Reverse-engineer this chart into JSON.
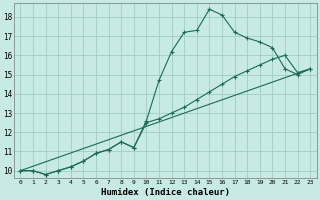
{
  "xlabel": "Humidex (Indice chaleur)",
  "bg_color": "#c8eae4",
  "grid_color": "#a0ccc4",
  "line_color": "#1a6b5a",
  "xlim_min": -0.5,
  "xlim_max": 23.5,
  "ylim_min": 9.6,
  "ylim_max": 18.7,
  "xticks": [
    0,
    1,
    2,
    3,
    4,
    5,
    6,
    7,
    8,
    9,
    10,
    11,
    12,
    13,
    14,
    15,
    16,
    17,
    18,
    19,
    20,
    21,
    22,
    23
  ],
  "yticks": [
    10,
    11,
    12,
    13,
    14,
    15,
    16,
    17,
    18
  ],
  "line1_x": [
    0,
    1,
    2,
    3,
    4,
    5,
    6,
    7,
    8,
    9,
    10,
    11,
    12,
    13,
    14,
    15,
    16,
    17,
    18,
    19,
    20,
    21,
    22,
    23
  ],
  "line1_y": [
    10.0,
    10.0,
    9.8,
    10.0,
    10.2,
    10.5,
    10.9,
    11.1,
    11.5,
    11.2,
    12.6,
    14.7,
    16.2,
    17.2,
    17.3,
    18.4,
    18.1,
    17.2,
    16.9,
    16.7,
    16.4,
    15.3,
    15.0,
    15.3
  ],
  "line2_x": [
    0,
    1,
    2,
    3,
    4,
    5,
    6,
    7,
    8,
    9,
    10,
    11,
    12,
    13,
    14,
    15,
    16,
    17,
    18,
    19,
    20,
    21,
    22,
    23
  ],
  "line2_y": [
    10.0,
    10.0,
    9.8,
    10.0,
    10.2,
    10.5,
    10.9,
    11.1,
    11.5,
    11.2,
    12.5,
    12.7,
    13.0,
    13.3,
    13.7,
    14.1,
    14.5,
    14.9,
    15.2,
    15.5,
    15.8,
    16.0,
    15.1,
    15.3
  ],
  "line3_x": [
    0,
    23
  ],
  "line3_y": [
    10.0,
    15.3
  ]
}
